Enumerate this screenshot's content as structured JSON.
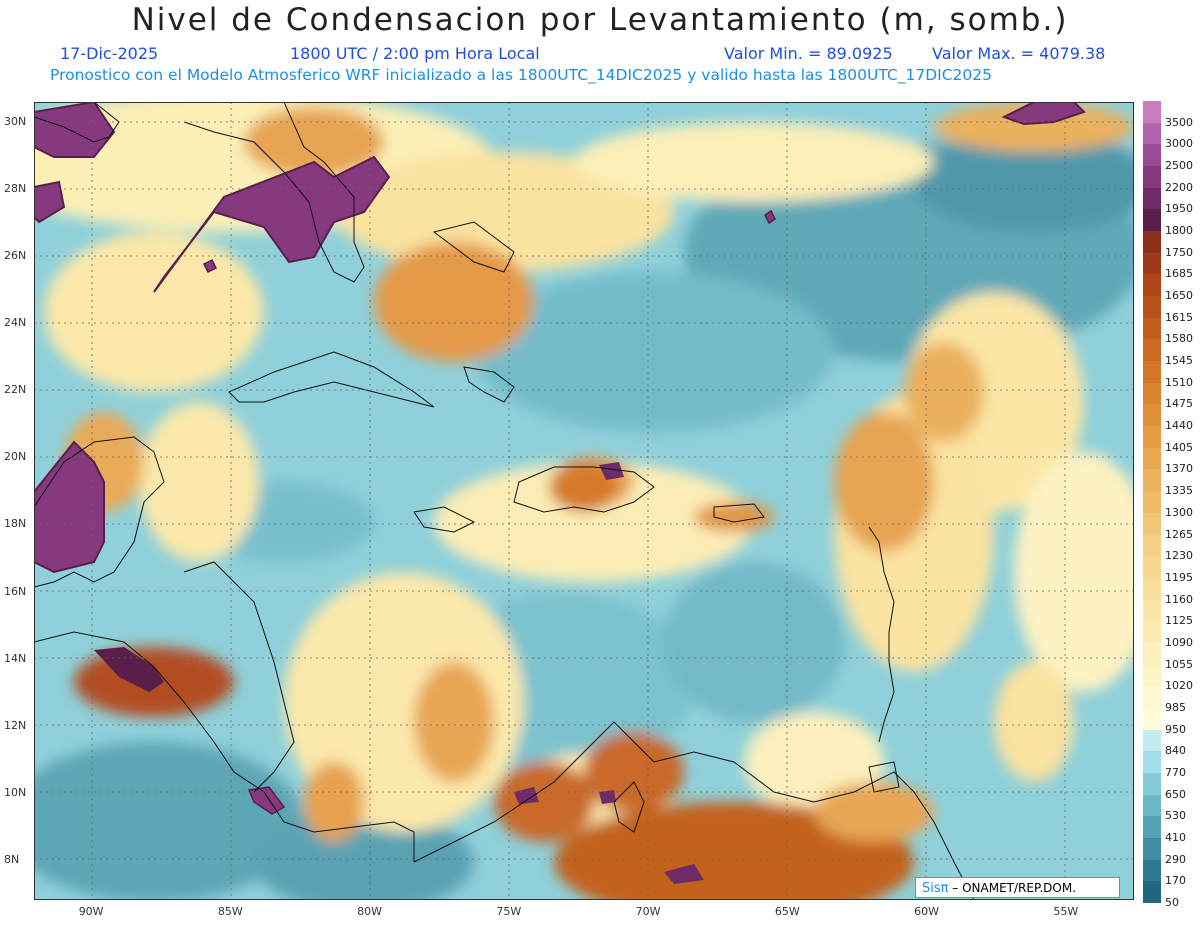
{
  "header": {
    "title": "Nivel de Condensacion por Levantamiento (m, somb.)",
    "date": "17-Dic-2025",
    "time": "1800 UTC / 2:00 pm Hora Local",
    "min_label": "Valor Min. = 89.0925",
    "max_label": "Valor Max. = 4079.38",
    "description": "Pronostico con el Modelo Atmosferico WRF inicializado a las 1800UTC_14DIC2025 y valido hasta las  1800UTC_17DIC2025"
  },
  "map": {
    "lon_range": [
      -92,
      -52.5
    ],
    "lat_range": [
      6.8,
      30.6
    ],
    "grid": true,
    "x_ticks": [
      "90W",
      "85W",
      "80W",
      "75W",
      "70W",
      "65W",
      "60W",
      "55W"
    ],
    "x_tick_values": [
      -90,
      -85,
      -80,
      -75,
      -70,
      -65,
      -60,
      -55
    ],
    "y_ticks": [
      "30N",
      "28N",
      "26N",
      "24N",
      "22N",
      "20N",
      "18N",
      "16N",
      "14N",
      "12N",
      "10N",
      "8N"
    ],
    "y_tick_values": [
      30,
      28,
      26,
      24,
      22,
      20,
      18,
      16,
      14,
      12,
      10,
      8
    ]
  },
  "colorbar": {
    "labels": [
      "3500",
      "3000",
      "2500",
      "2200",
      "1950",
      "1800",
      "1750",
      "1685",
      "1650",
      "1615",
      "1580",
      "1545",
      "1510",
      "1475",
      "1440",
      "1405",
      "1370",
      "1335",
      "1300",
      "1265",
      "1230",
      "1195",
      "1160",
      "1125",
      "1090",
      "1055",
      "1020",
      "985",
      "950",
      "840",
      "770",
      "650",
      "530",
      "410",
      "290",
      "170",
      "50"
    ],
    "colors": [
      "#c77dc0",
      "#b263ad",
      "#9b4a98",
      "#86397f",
      "#6e2b68",
      "#5a1e4a",
      "#8b2e1a",
      "#9e3a1a",
      "#ad4519",
      "#b85118",
      "#c25d1a",
      "#cb6a20",
      "#d47728",
      "#db8431",
      "#e0903a",
      "#e59c45",
      "#e9a751",
      "#edb25d",
      "#f0bc69",
      "#f3c676",
      "#f5cf83",
      "#f7d78f",
      "#f9df9b",
      "#fae5a6",
      "#fbebb1",
      "#fcf0bc",
      "#fdf4c6",
      "#fdf8d0",
      "#fffbd9",
      "#c2ebf0",
      "#a3dde7",
      "#86ccd8",
      "#6ab8c8",
      "#52a3b6",
      "#3d8ea3",
      "#2c7a90",
      "#1f677e"
    ]
  },
  "credit": {
    "logo": "Sisπ",
    "text": "– ONAMET/REP.DOM."
  }
}
